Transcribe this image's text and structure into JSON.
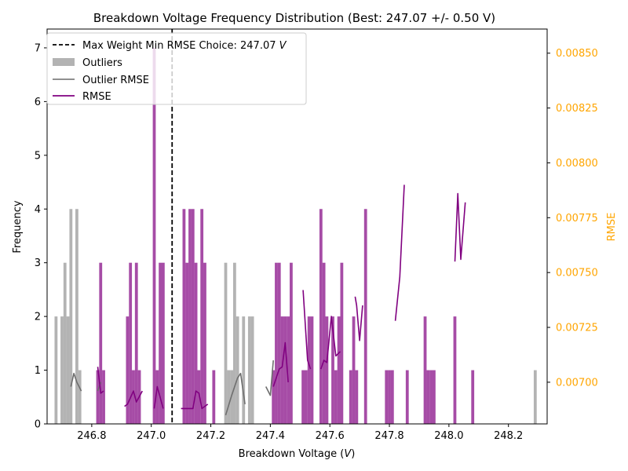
{
  "chart_data": {
    "type": "bar",
    "title": "Breakdown Voltage Frequency Distribution (Best: 247.07 +/- 0.50 V)",
    "xlabel": "Breakdown Voltage (V)",
    "ylabel": "Frequency",
    "y2label": "RMSE",
    "xlim": [
      246.65,
      248.33
    ],
    "ylim": [
      0,
      7.35
    ],
    "y2lim": [
      0.00681,
      0.00861
    ],
    "x_ticks": [
      246.8,
      247.0,
      247.2,
      247.4,
      247.6,
      247.8,
      248.0,
      248.2
    ],
    "x_tick_labels": [
      "246.8",
      "247.0",
      "247.2",
      "247.4",
      "247.6",
      "247.8",
      "248.0",
      "248.2"
    ],
    "y_ticks": [
      0,
      1,
      2,
      3,
      4,
      5,
      6,
      7
    ],
    "y2_ticks": [
      0.007,
      0.00725,
      0.0075,
      0.00775,
      0.008,
      0.00825,
      0.0085
    ],
    "y2_tick_labels": [
      "0.00700",
      "0.00725",
      "0.00750",
      "0.00775",
      "0.00800",
      "0.00825",
      "0.00850"
    ],
    "bin_width": 0.01,
    "best_value": 247.07,
    "colors": {
      "frequency": "#800080",
      "outliers": "#808080",
      "outlier_rmse": "#808080",
      "rmse": "#800080",
      "vline": "#000000",
      "right_axis": "#ffa500"
    },
    "legend": {
      "position": "upper-left",
      "entries": [
        {
          "label": "Max Weight Min RMSE Choice: 247.07 V",
          "style": "dashed-line",
          "color": "#000000"
        },
        {
          "label": "Outliers",
          "style": "patch",
          "color": "#808080"
        },
        {
          "label": "Outlier RMSE",
          "style": "line",
          "color": "#808080"
        },
        {
          "label": "RMSE",
          "style": "line",
          "color": "#800080"
        }
      ]
    },
    "bars_main": [
      {
        "x": 246.82,
        "y": 1
      },
      {
        "x": 246.83,
        "y": 3
      },
      {
        "x": 246.84,
        "y": 1
      },
      {
        "x": 246.92,
        "y": 2
      },
      {
        "x": 246.93,
        "y": 3
      },
      {
        "x": 246.94,
        "y": 1
      },
      {
        "x": 246.95,
        "y": 3
      },
      {
        "x": 246.96,
        "y": 1
      },
      {
        "x": 247.01,
        "y": 7
      },
      {
        "x": 247.02,
        "y": 1
      },
      {
        "x": 247.03,
        "y": 3
      },
      {
        "x": 247.04,
        "y": 3
      },
      {
        "x": 247.11,
        "y": 4
      },
      {
        "x": 247.12,
        "y": 3
      },
      {
        "x": 247.13,
        "y": 4
      },
      {
        "x": 247.14,
        "y": 4
      },
      {
        "x": 247.15,
        "y": 3
      },
      {
        "x": 247.16,
        "y": 1
      },
      {
        "x": 247.17,
        "y": 4
      },
      {
        "x": 247.18,
        "y": 3
      },
      {
        "x": 247.21,
        "y": 1
      },
      {
        "x": 247.41,
        "y": 1
      },
      {
        "x": 247.42,
        "y": 3
      },
      {
        "x": 247.43,
        "y": 3
      },
      {
        "x": 247.44,
        "y": 2
      },
      {
        "x": 247.45,
        "y": 2
      },
      {
        "x": 247.46,
        "y": 2
      },
      {
        "x": 247.47,
        "y": 3
      },
      {
        "x": 247.51,
        "y": 1
      },
      {
        "x": 247.52,
        "y": 1
      },
      {
        "x": 247.53,
        "y": 2
      },
      {
        "x": 247.54,
        "y": 2
      },
      {
        "x": 247.57,
        "y": 4
      },
      {
        "x": 247.58,
        "y": 3
      },
      {
        "x": 247.59,
        "y": 2
      },
      {
        "x": 247.61,
        "y": 2
      },
      {
        "x": 247.62,
        "y": 1
      },
      {
        "x": 247.63,
        "y": 2
      },
      {
        "x": 247.64,
        "y": 3
      },
      {
        "x": 247.67,
        "y": 1
      },
      {
        "x": 247.68,
        "y": 2
      },
      {
        "x": 247.69,
        "y": 1
      },
      {
        "x": 247.72,
        "y": 4
      },
      {
        "x": 247.79,
        "y": 1
      },
      {
        "x": 247.8,
        "y": 1
      },
      {
        "x": 247.81,
        "y": 1
      },
      {
        "x": 247.86,
        "y": 1
      },
      {
        "x": 247.92,
        "y": 2
      },
      {
        "x": 247.93,
        "y": 1
      },
      {
        "x": 247.94,
        "y": 1
      },
      {
        "x": 247.95,
        "y": 1
      },
      {
        "x": 248.02,
        "y": 2
      },
      {
        "x": 248.08,
        "y": 1
      }
    ],
    "bars_outliers": [
      {
        "x": 246.68,
        "y": 2
      },
      {
        "x": 246.7,
        "y": 2
      },
      {
        "x": 246.71,
        "y": 3
      },
      {
        "x": 246.72,
        "y": 2
      },
      {
        "x": 246.73,
        "y": 4
      },
      {
        "x": 246.75,
        "y": 4
      },
      {
        "x": 246.76,
        "y": 1
      },
      {
        "x": 247.25,
        "y": 3
      },
      {
        "x": 247.26,
        "y": 1
      },
      {
        "x": 247.27,
        "y": 1
      },
      {
        "x": 247.28,
        "y": 3
      },
      {
        "x": 247.29,
        "y": 2
      },
      {
        "x": 247.31,
        "y": 2
      },
      {
        "x": 247.33,
        "y": 2
      },
      {
        "x": 247.34,
        "y": 2
      },
      {
        "x": 248.29,
        "y": 1
      }
    ],
    "rmse_outlier_series": [
      [
        [
          246.73,
          0.00698
        ],
        [
          246.74,
          0.00704
        ],
        [
          246.75,
          0.007
        ],
        [
          246.765,
          0.00696
        ]
      ],
      [
        [
          246.82,
          0.00696
        ],
        [
          246.83,
          0.007
        ]
      ],
      [
        [
          247.25,
          0.00685
        ],
        [
          247.27,
          0.00694
        ],
        [
          247.29,
          0.00702
        ],
        [
          247.3,
          0.00704
        ],
        [
          247.315,
          0.0069
        ]
      ],
      [
        [
          247.385,
          0.00698
        ],
        [
          247.4,
          0.00694
        ],
        [
          247.41,
          0.0071
        ]
      ]
    ],
    "rmse_series": [
      [
        [
          246.82,
          0.00707
        ],
        [
          246.83,
          0.00695
        ],
        [
          246.84,
          0.00696
        ]
      ],
      [
        [
          246.91,
          0.00689
        ],
        [
          246.92,
          0.0069
        ],
        [
          246.94,
          0.00696
        ],
        [
          246.95,
          0.00691
        ],
        [
          246.97,
          0.00696
        ]
      ],
      [
        [
          247.01,
          0.00688
        ],
        [
          247.02,
          0.00698
        ],
        [
          247.04,
          0.00688
        ]
      ],
      [
        [
          247.1,
          0.00688
        ],
        [
          247.12,
          0.00688
        ],
        [
          247.14,
          0.00688
        ],
        [
          247.15,
          0.00696
        ],
        [
          247.16,
          0.00695
        ],
        [
          247.17,
          0.00688
        ],
        [
          247.19,
          0.0069
        ]
      ],
      [
        [
          247.41,
          0.00698
        ],
        [
          247.43,
          0.00706
        ],
        [
          247.44,
          0.00707
        ],
        [
          247.45,
          0.00718
        ],
        [
          247.46,
          0.007
        ]
      ],
      [
        [
          247.51,
          0.00742
        ],
        [
          247.525,
          0.0071
        ],
        [
          247.535,
          0.00706
        ]
      ],
      [
        [
          247.57,
          0.00706
        ],
        [
          247.58,
          0.0071
        ],
        [
          247.59,
          0.00709
        ],
        [
          247.605,
          0.0073
        ],
        [
          247.62,
          0.00712
        ],
        [
          247.635,
          0.00714
        ]
      ],
      [
        [
          247.685,
          0.00739
        ],
        [
          247.69,
          0.00735
        ],
        [
          247.7,
          0.00719
        ],
        [
          247.71,
          0.00735
        ]
      ],
      [
        [
          247.82,
          0.00728
        ],
        [
          247.835,
          0.00748
        ],
        [
          247.85,
          0.0079
        ]
      ],
      [
        [
          248.02,
          0.00755
        ],
        [
          248.03,
          0.00786
        ],
        [
          248.04,
          0.00756
        ],
        [
          248.055,
          0.00782
        ]
      ]
    ]
  }
}
